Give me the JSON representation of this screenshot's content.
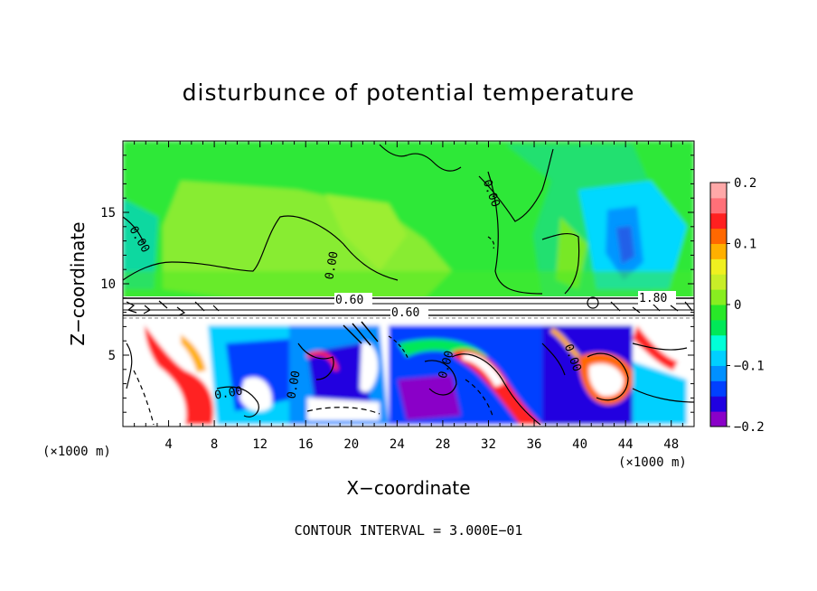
{
  "chart_data": {
    "type": "heatmap",
    "title": "disturbunce of potential temperature",
    "xlabel": "X−coordinate",
    "ylabel": "Z−coordinate",
    "x_unit_left": "(×1000 m)",
    "x_unit_right": "(×1000 m)",
    "footer": "CONTOUR INTERVAL = 3.000E−01",
    "xlim": [
      0,
      50
    ],
    "ylim": [
      0,
      20
    ],
    "x_ticks": [
      "4",
      "8",
      "12",
      "16",
      "20",
      "24",
      "28",
      "32",
      "36",
      "40",
      "44",
      "48"
    ],
    "y_ticks": [
      "5",
      "10",
      "15"
    ],
    "colorbar": {
      "range": [
        -0.2,
        0.2
      ],
      "tick_labels": [
        "0.2",
        "0.1",
        "0",
        "−0.1",
        "−0.2"
      ],
      "colors": [
        "#8a00c8",
        "#2000e0",
        "#0040ff",
        "#0090ff",
        "#00d0ff",
        "#00ffd8",
        "#00e858",
        "#28e828",
        "#88ee20",
        "#c8ee28",
        "#f0f020",
        "#ffb000",
        "#ff6800",
        "#ff2020",
        "#ff7078",
        "#ffa8a8"
      ]
    },
    "contour_labels": [
      {
        "text": "0.00",
        "x": 1.2,
        "z": 13.2
      },
      {
        "text": "0.00",
        "x": 18.8,
        "z": 11.6
      },
      {
        "text": "0.00",
        "x": 32.6,
        "z": 15.2
      },
      {
        "text": "0.60",
        "x": 20.0,
        "z": 9.2
      },
      {
        "text": "0.60",
        "x": 25.2,
        "z": 8.3
      },
      {
        "text": "1.80",
        "x": 46.8,
        "z": 9.2
      },
      {
        "text": "0.00",
        "x": 9.5,
        "z": 2.5
      },
      {
        "text": "0.00",
        "x": 14.8,
        "z": 3.0
      },
      {
        "text": "0.00",
        "x": 28.8,
        "z": 4.2
      },
      {
        "text": "0.00",
        "x": 39.0,
        "z": 4.5
      }
    ]
  }
}
